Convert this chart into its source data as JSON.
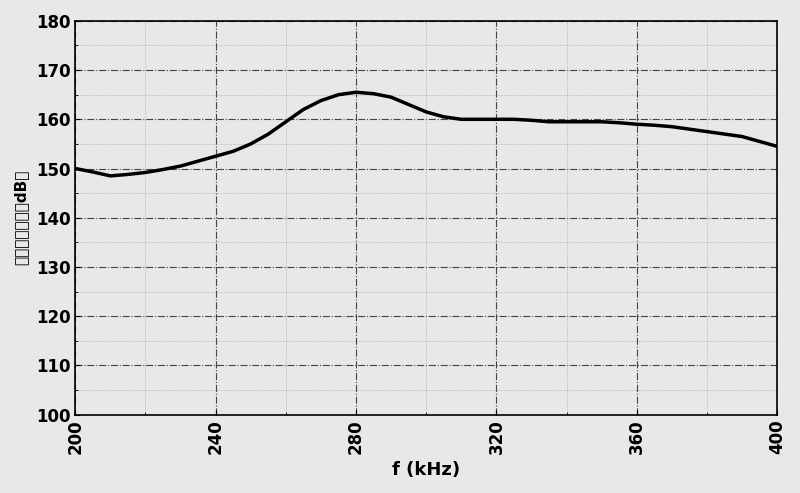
{
  "x": [
    200,
    205,
    210,
    215,
    220,
    225,
    230,
    235,
    240,
    245,
    250,
    255,
    260,
    265,
    270,
    275,
    280,
    285,
    290,
    295,
    300,
    305,
    310,
    315,
    320,
    325,
    330,
    335,
    340,
    345,
    350,
    355,
    360,
    365,
    370,
    375,
    380,
    385,
    390,
    395,
    400
  ],
  "y": [
    150.0,
    149.3,
    148.5,
    148.8,
    149.2,
    149.8,
    150.5,
    151.5,
    152.5,
    153.5,
    155.0,
    157.0,
    159.5,
    162.0,
    163.8,
    165.0,
    165.5,
    165.2,
    164.5,
    163.0,
    161.5,
    160.5,
    160.0,
    160.0,
    160.0,
    160.0,
    159.8,
    159.5,
    159.5,
    159.5,
    159.5,
    159.3,
    159.0,
    158.8,
    158.5,
    158.0,
    157.5,
    157.0,
    156.5,
    155.5,
    154.5
  ],
  "xlim": [
    200,
    400
  ],
  "ylim": [
    100,
    180
  ],
  "xticks": [
    200,
    240,
    280,
    320,
    360,
    400
  ],
  "yticks": [
    100,
    110,
    120,
    130,
    140,
    150,
    160,
    170,
    180
  ],
  "xlabel": "f (kHz)",
  "ylabel": "发送电压响应（dB）",
  "line_color": "#000000",
  "line_width": 2.5,
  "grid_color": "#444444",
  "grid_linestyle": "-.",
  "grid_linewidth": 0.8,
  "bg_color": "#e8e8e8",
  "fig_width": 8.0,
  "fig_height": 4.93,
  "dpi": 100
}
